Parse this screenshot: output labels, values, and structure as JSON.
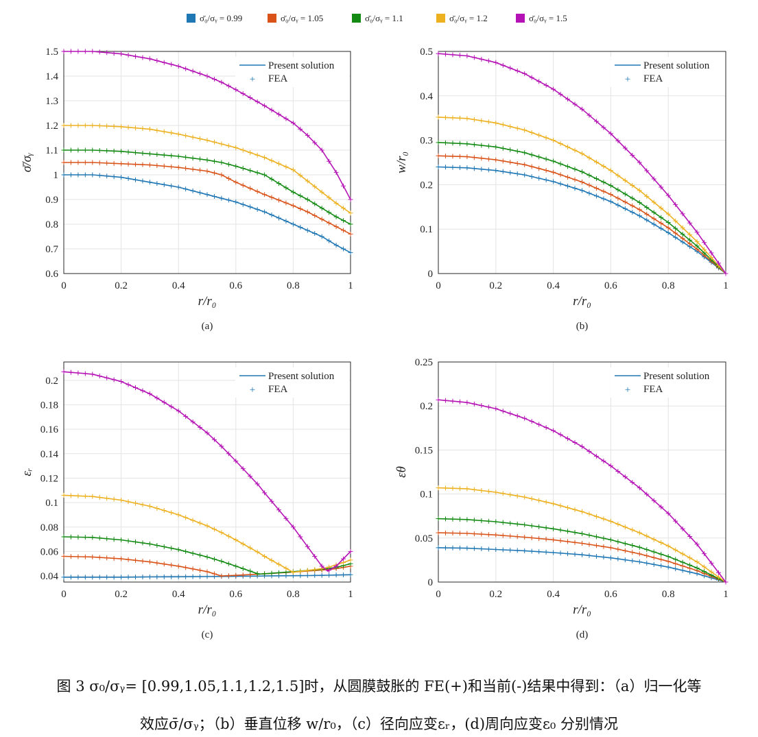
{
  "top_legend": [
    {
      "label": "σ̄₀/σᵧ = 0.99",
      "color": "#1f77b4"
    },
    {
      "label": "σ̄₀/σᵧ = 1.05",
      "color": "#d95319"
    },
    {
      "label": "σ̄₀/σᵧ = 1.1",
      "color": "#138a13"
    },
    {
      "label": "σ̄₀/σᵧ = 1.2",
      "color": "#edb120"
    },
    {
      "label": "σ̄₀/σᵧ = 1.5",
      "color": "#b512b5"
    }
  ],
  "inner_legend": {
    "line": "Present solution",
    "marker": "FEA",
    "marker_symbol": "+"
  },
  "caption": {
    "line1": "图 3  σ₀/σᵧ= [0.99,1.05,1.1,1.2,1.5]时，从圆膜鼓胀的 FE(+)和当前(-)结果中得到：（a）归一化等",
    "line2": "效应σ̄/σᵧ；（b）垂直位移 w/r₀，（c）径向应变εᵣ，(d)周向应变ε₀ 分别情况"
  },
  "chart_data": [
    {
      "type": "line",
      "panel": "(a)",
      "xlabel": "r/r₀",
      "ylabel": "σ̄/σᵧ",
      "xlim": [
        0,
        1
      ],
      "ylim": [
        0.6,
        1.5
      ],
      "xticks": [
        "0",
        "0.2",
        "0.4",
        "0.6",
        "0.8",
        "1"
      ],
      "yticks": [
        "0.6",
        "0.7",
        "0.8",
        "0.9",
        "1",
        "1.1",
        "1.2",
        "1.3",
        "1.4",
        "1.5"
      ],
      "grid": true,
      "legend_position": "top-right",
      "x": [
        0,
        0.1,
        0.2,
        0.3,
        0.4,
        0.5,
        0.55,
        0.6,
        0.7,
        0.8,
        0.85,
        0.9,
        0.95,
        1.0
      ],
      "series": [
        {
          "values": [
            1.0,
            1.0,
            0.99,
            0.97,
            0.95,
            0.92,
            0.905,
            0.89,
            0.85,
            0.8,
            0.775,
            0.75,
            0.715,
            0.685
          ]
        },
        {
          "values": [
            1.05,
            1.05,
            1.045,
            1.04,
            1.03,
            1.015,
            1.0,
            0.97,
            0.92,
            0.875,
            0.85,
            0.82,
            0.79,
            0.76
          ]
        },
        {
          "values": [
            1.1,
            1.1,
            1.095,
            1.085,
            1.075,
            1.06,
            1.05,
            1.035,
            1.0,
            0.93,
            0.9,
            0.865,
            0.83,
            0.8
          ]
        },
        {
          "values": [
            1.2,
            1.2,
            1.195,
            1.185,
            1.165,
            1.14,
            1.125,
            1.11,
            1.07,
            1.02,
            0.975,
            0.93,
            0.885,
            0.845
          ]
        },
        {
          "values": [
            1.5,
            1.5,
            1.49,
            1.47,
            1.44,
            1.4,
            1.375,
            1.345,
            1.28,
            1.21,
            1.16,
            1.1,
            1.01,
            0.9
          ]
        }
      ]
    },
    {
      "type": "line",
      "panel": "(b)",
      "xlabel": "r/r₀",
      "ylabel": "w/r₀",
      "xlim": [
        0,
        1
      ],
      "ylim": [
        0,
        0.5
      ],
      "xticks": [
        "0",
        "0.2",
        "0.4",
        "0.6",
        "0.8",
        "1"
      ],
      "yticks": [
        "0",
        "0.1",
        "0.2",
        "0.3",
        "0.4",
        "0.5"
      ],
      "grid": true,
      "legend_position": "top-right",
      "x": [
        0,
        0.1,
        0.2,
        0.3,
        0.4,
        0.5,
        0.6,
        0.7,
        0.8,
        0.9,
        1.0
      ],
      "series": [
        {
          "values": [
            0.24,
            0.238,
            0.232,
            0.222,
            0.207,
            0.187,
            0.162,
            0.13,
            0.092,
            0.05,
            0.0
          ]
        },
        {
          "values": [
            0.265,
            0.263,
            0.256,
            0.245,
            0.228,
            0.206,
            0.178,
            0.144,
            0.103,
            0.055,
            0.0
          ]
        },
        {
          "values": [
            0.295,
            0.292,
            0.285,
            0.272,
            0.253,
            0.229,
            0.198,
            0.16,
            0.115,
            0.062,
            0.0
          ]
        },
        {
          "values": [
            0.352,
            0.349,
            0.339,
            0.323,
            0.3,
            0.27,
            0.232,
            0.187,
            0.134,
            0.072,
            0.0
          ]
        },
        {
          "values": [
            0.495,
            0.49,
            0.475,
            0.45,
            0.415,
            0.37,
            0.315,
            0.25,
            0.176,
            0.093,
            0.0
          ]
        }
      ]
    },
    {
      "type": "line",
      "panel": "(c)",
      "xlabel": "r/r₀",
      "ylabel": "εᵣ",
      "xlim": [
        0,
        1
      ],
      "ylim": [
        0.035,
        0.215
      ],
      "xticks": [
        "0",
        "0.2",
        "0.4",
        "0.6",
        "0.8",
        "1"
      ],
      "yticks": [
        "0.04",
        "0.06",
        "0.08",
        "0.1",
        "0.12",
        "0.14",
        "0.16",
        "0.18",
        "0.2"
      ],
      "grid": true,
      "legend_position": "top-right",
      "x": [
        0,
        0.1,
        0.2,
        0.3,
        0.4,
        0.5,
        0.55,
        0.6,
        0.68,
        0.7,
        0.8,
        0.85,
        0.9,
        0.92,
        0.95,
        1.0
      ],
      "series": [
        {
          "values": [
            0.039,
            0.039,
            0.039,
            0.0392,
            0.0393,
            0.0395,
            0.0396,
            0.0397,
            0.0399,
            0.04,
            0.0402,
            0.0403,
            0.0405,
            0.0406,
            0.0408,
            0.041
          ]
        },
        {
          "values": [
            0.056,
            0.0555,
            0.054,
            0.0515,
            0.048,
            0.0435,
            0.04,
            0.0405,
            0.0415,
            0.0418,
            0.0432,
            0.044,
            0.0448,
            0.0452,
            0.046,
            0.048
          ]
        },
        {
          "values": [
            0.072,
            0.0715,
            0.0695,
            0.0662,
            0.0615,
            0.0555,
            0.052,
            0.048,
            0.0415,
            0.0418,
            0.0435,
            0.0445,
            0.0455,
            0.046,
            0.047,
            0.05
          ]
        },
        {
          "values": [
            0.106,
            0.105,
            0.102,
            0.097,
            0.09,
            0.081,
            0.0755,
            0.0695,
            0.059,
            0.056,
            0.043,
            0.0445,
            0.046,
            0.047,
            0.049,
            0.053
          ]
        },
        {
          "values": [
            0.207,
            0.205,
            0.199,
            0.189,
            0.175,
            0.157,
            0.146,
            0.134,
            0.114,
            0.108,
            0.08,
            0.064,
            0.048,
            0.044,
            0.048,
            0.06
          ]
        }
      ]
    },
    {
      "type": "line",
      "panel": "(d)",
      "xlabel": "r/r₀",
      "ylabel": "εθ",
      "xlim": [
        0,
        1
      ],
      "ylim": [
        0,
        0.25
      ],
      "xticks": [
        "0",
        "0.2",
        "0.4",
        "0.6",
        "0.8",
        "1"
      ],
      "yticks": [
        "0",
        "0.05",
        "0.1",
        "0.15",
        "0.2",
        "0.25"
      ],
      "grid": true,
      "legend_position": "top-right",
      "x": [
        0,
        0.1,
        0.2,
        0.3,
        0.4,
        0.5,
        0.6,
        0.7,
        0.8,
        0.9,
        1.0
      ],
      "series": [
        {
          "values": [
            0.039,
            0.0385,
            0.037,
            0.0355,
            0.0335,
            0.031,
            0.0275,
            0.023,
            0.017,
            0.0095,
            0.0
          ]
        },
        {
          "values": [
            0.056,
            0.0553,
            0.0535,
            0.051,
            0.048,
            0.044,
            0.039,
            0.032,
            0.0235,
            0.013,
            0.0
          ]
        },
        {
          "values": [
            0.072,
            0.071,
            0.0685,
            0.065,
            0.0605,
            0.055,
            0.048,
            0.0395,
            0.029,
            0.016,
            0.0
          ]
        },
        {
          "values": [
            0.107,
            0.106,
            0.102,
            0.0965,
            0.089,
            0.08,
            0.069,
            0.056,
            0.041,
            0.023,
            0.0
          ]
        },
        {
          "values": [
            0.207,
            0.204,
            0.197,
            0.186,
            0.172,
            0.154,
            0.132,
            0.107,
            0.078,
            0.043,
            0.0
          ]
        }
      ]
    }
  ]
}
